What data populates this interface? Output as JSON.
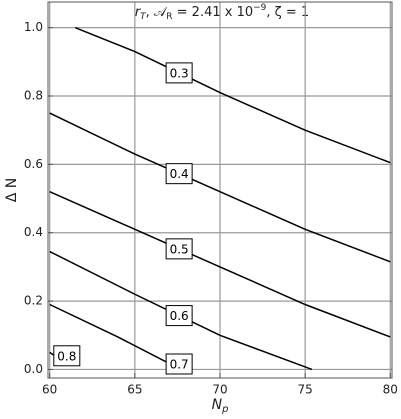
{
  "chart_data": {
    "type": "contour",
    "title": [
      "r",
      "T",
      ", 𝒜",
      "R",
      " = 2.41 x 10",
      "−9",
      ", ζ = 1"
    ],
    "x_label": [
      "N",
      "p"
    ],
    "y_label": "Δ N",
    "xlim": [
      59.9,
      80.1
    ],
    "ylim": [
      -0.025,
      1.075
    ],
    "xticks": [
      60,
      65,
      70,
      75,
      80
    ],
    "yticks": [
      {
        "value": 0,
        "label": "0.0"
      },
      0.2,
      0.4,
      0.6,
      0.8,
      {
        "value": 1,
        "label": "1.0"
      }
    ],
    "grid": true,
    "series": [
      {
        "name": "0.3",
        "color": "#000000",
        "x": [
          61.5,
          65,
          70,
          75,
          80
        ],
        "values": [
          1.0,
          0.93,
          0.81,
          0.7,
          0.605
        ]
      },
      {
        "name": "0.4",
        "color": "#000000",
        "x": [
          60,
          65,
          70,
          75,
          80
        ],
        "values": [
          0.75,
          0.63,
          0.52,
          0.41,
          0.315
        ]
      },
      {
        "name": "0.5",
        "color": "#000000",
        "x": [
          60,
          65,
          70,
          75,
          80
        ],
        "values": [
          0.52,
          0.41,
          0.3,
          0.19,
          0.095
        ]
      },
      {
        "name": "0.6",
        "color": "#000000",
        "x": [
          60,
          65,
          70,
          75.4
        ],
        "values": [
          0.345,
          0.22,
          0.1,
          0.0
        ]
      },
      {
        "name": "0.7",
        "color": "#000000",
        "x": [
          60,
          64,
          67.7
        ],
        "values": [
          0.19,
          0.095,
          0.0
        ]
      },
      {
        "name": "0.8",
        "color": "#000000",
        "x": [
          60,
          60.6
        ],
        "values": [
          0.05,
          0.03
        ]
      }
    ]
  }
}
